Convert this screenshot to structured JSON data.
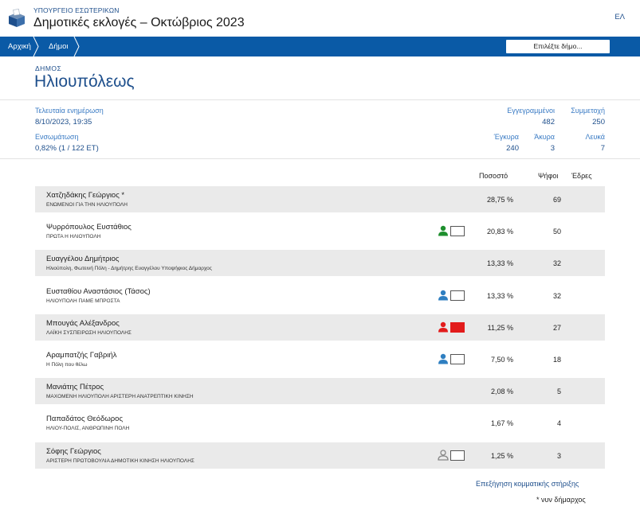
{
  "header": {
    "ministry": "ΥΠΟΥΡΓΕΙΟ ΕΣΩΤΕΡΙΚΩΝ",
    "title": "Δημοτικές εκλογές – Οκτώβριος 2023",
    "language": "ΕΛ"
  },
  "nav": {
    "home": "Αρχική",
    "municipalities": "Δήμοι",
    "select_placeholder": "Επιλέξτε δήμο..."
  },
  "municipality": {
    "label": "ΔΗΜΟΣ",
    "name": "Ηλιουπόλεως"
  },
  "stats": {
    "last_update_label": "Τελευταία ενημέρωση",
    "last_update_value": "8/10/2023, 19:35",
    "integration_label": "Ενσωμάτωση",
    "integration_value": "0,82% (1 / 122 ΕΤ)",
    "registered_label": "Εγγεγραμμένοι",
    "registered_value": "482",
    "turnout_label": "Συμμετοχή",
    "turnout_value": "250",
    "valid_label": "Έγκυρα",
    "valid_value": "240",
    "invalid_label": "Άκυρα",
    "invalid_value": "3",
    "blank_label": "Λευκά",
    "blank_value": "7"
  },
  "table": {
    "headers": {
      "percent": "Ποσοστό",
      "votes": "Ψήφοι",
      "seats": "Έδρες"
    },
    "rows": [
      {
        "candidate": "Χατζηδάκης Γεώργιος *",
        "party": "ΕΝΩΜΕΝΟΙ ΓΙΑ ΤΗΝ ΗΛΙΟΥΠΟΛΗ",
        "percent": "28,75 %",
        "votes": "69",
        "support": "none"
      },
      {
        "candidate": "Ψυρρόπουλος Ευστάθιος",
        "party": "ΠΡΩΤΑ Η ΗΛΙΟΥΠΟΛΗ",
        "percent": "20,83 %",
        "votes": "50",
        "support": "green"
      },
      {
        "candidate": "Ευαγγέλου Δημήτριος",
        "party": "Ηλιούπολη, Φωτεινή Πόλη - Δημήτρης Ευαγγέλου Υποψήφιος Δήμαρχος",
        "percent": "13,33 %",
        "votes": "32",
        "support": "none"
      },
      {
        "candidate": "Ευσταθίου Αναστάσιος (Τάσος)",
        "party": "ΗΛΙΟΥΠΟΛΗ ΠΑΜΕ ΜΠΡΟΣΤΑ",
        "percent": "13,33 %",
        "votes": "32",
        "support": "blue"
      },
      {
        "candidate": "Μπουγάς Αλέξανδρος",
        "party": "ΛΑΪΚΗ ΣΥΣΠΕΙΡΩΣΗ ΗΛΙΟΥΠΟΛΗΣ",
        "percent": "11,25 %",
        "votes": "27",
        "support": "red"
      },
      {
        "candidate": "Αραμπατζής Γαβριήλ",
        "party": "Η Πόλη που θέλω",
        "percent": "7,50 %",
        "votes": "18",
        "support": "blue"
      },
      {
        "candidate": "Μανιάτης Πέτρος",
        "party": "ΜΑΧΟΜΕΝΗ ΗΛΙΟΥΠΟΛΗ ΑΡΙΣΤΕΡΗ ΑΝΑΤΡΕΠΤΙΚΗ ΚΙΝΗΣΗ",
        "percent": "2,08 %",
        "votes": "5",
        "support": "none"
      },
      {
        "candidate": "Παπαδάτος Θεόδωρος",
        "party": "ΗΛΙΟΥ-ΠΟΛΙΣ, ΑΝΘΡΩΠΙΝΗ ΠΟΛΗ",
        "percent": "1,67 %",
        "votes": "4",
        "support": "none"
      },
      {
        "candidate": "Σόφης Γεώργιος",
        "party": "ΑΡΙΣΤΕΡΗ ΠΡΩΤΟΒΟΥΛΙΑ ΔΗΜΟΤΙΚΗ ΚΙΝΗΣΗ ΗΛΙΟΥΠΟΛΗΣ",
        "percent": "1,25 %",
        "votes": "3",
        "support": "gray"
      }
    ]
  },
  "footer": {
    "support_link": "Επεξήγηση κομματικής στήριξης",
    "note": "* νυν δήμαρχος"
  },
  "colors": {
    "nav_blue": "#0a5aa6",
    "title_blue": "#1e4f8c",
    "label_blue": "#3a7bc4",
    "support_green": "#1e8f2e",
    "support_blue": "#2f7fc1",
    "support_red": "#e21b1b",
    "support_gray": "#888888",
    "row_shade": "#eaeaea"
  }
}
